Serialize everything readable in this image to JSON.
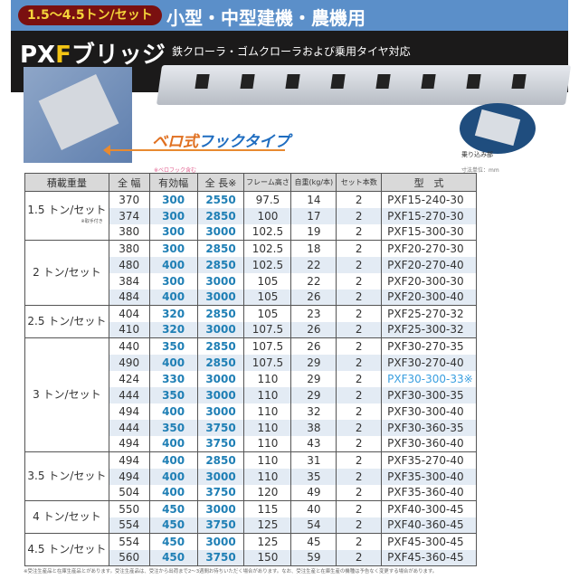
{
  "header": {
    "capacity_badge": "1.5～4.5トン/セット",
    "category": "小型・中型建機・農機用",
    "brand_prefix": "PX",
    "brand_f": "F",
    "brand_suffix": "ブリッジ",
    "subtitle": "鉄クローラ・ゴムクローラおよび乗用タイヤ対応"
  },
  "feature": {
    "hook_a": "ベロ式",
    "hook_b": "フックタイプ",
    "oval_label": "乗り込み部"
  },
  "notes": {
    "length_note": "※ベロフック含む",
    "unit": "寸法単位：mm",
    "footer": "※受注生産品と在庫生産品とがあります。受注生産品は、受注から出荷まで2～3週間お待ちいただく場合があります。なお、受注生産と在庫生産の機種は予告なく変更する場合があります。"
  },
  "colors": {
    "accent_blue": "#1f7fb5",
    "badge": "#7a1010",
    "highlight": "#3a9fe0"
  },
  "table": {
    "headers": [
      "積載重量",
      "全 幅",
      "有効幅",
      "全 長※",
      "フレーム高さ",
      "自重(kg/本)",
      "セット本数",
      "型　式"
    ],
    "groups": [
      {
        "load": "1.5 トン/セット",
        "sub": "※取手付き",
        "rows": [
          [
            "370",
            "300",
            "2550",
            "97.5",
            "14",
            "2",
            "PXF15-240-30"
          ],
          [
            "374",
            "300",
            "2850",
            "100",
            "17",
            "2",
            "PXF15-270-30"
          ],
          [
            "380",
            "300",
            "3000",
            "102.5",
            "19",
            "2",
            "PXF15-300-30"
          ]
        ]
      },
      {
        "load": "2 トン/セット",
        "rows": [
          [
            "380",
            "300",
            "2850",
            "102.5",
            "18",
            "2",
            "PXF20-270-30"
          ],
          [
            "480",
            "400",
            "2850",
            "102.5",
            "22",
            "2",
            "PXF20-270-40"
          ],
          [
            "384",
            "300",
            "3000",
            "105",
            "22",
            "2",
            "PXF20-300-30"
          ],
          [
            "484",
            "400",
            "3000",
            "105",
            "26",
            "2",
            "PXF20-300-40"
          ]
        ]
      },
      {
        "load": "2.5 トン/セット",
        "rows": [
          [
            "404",
            "320",
            "2850",
            "105",
            "23",
            "2",
            "PXF25-270-32"
          ],
          [
            "410",
            "320",
            "3000",
            "107.5",
            "26",
            "2",
            "PXF25-300-32"
          ]
        ]
      },
      {
        "load": "3 トン/セット",
        "rows": [
          [
            "440",
            "350",
            "2850",
            "107.5",
            "26",
            "2",
            "PXF30-270-35"
          ],
          [
            "490",
            "400",
            "2850",
            "107.5",
            "29",
            "2",
            "PXF30-270-40"
          ],
          [
            "424",
            "330",
            "3000",
            "110",
            "29",
            "2",
            "PXF30-300-33※"
          ],
          [
            "444",
            "350",
            "3000",
            "110",
            "29",
            "2",
            "PXF30-300-35"
          ],
          [
            "494",
            "400",
            "3000",
            "110",
            "32",
            "2",
            "PXF30-300-40"
          ],
          [
            "444",
            "350",
            "3750",
            "110",
            "38",
            "2",
            "PXF30-360-35"
          ],
          [
            "494",
            "400",
            "3750",
            "110",
            "43",
            "2",
            "PXF30-360-40"
          ]
        ]
      },
      {
        "load": "3.5 トン/セット",
        "rows": [
          [
            "494",
            "400",
            "2850",
            "110",
            "31",
            "2",
            "PXF35-270-40"
          ],
          [
            "494",
            "400",
            "3000",
            "110",
            "35",
            "2",
            "PXF35-300-40"
          ],
          [
            "504",
            "400",
            "3750",
            "120",
            "49",
            "2",
            "PXF35-360-40"
          ]
        ]
      },
      {
        "load": "4 トン/セット",
        "rows": [
          [
            "550",
            "450",
            "3000",
            "115",
            "40",
            "2",
            "PXF40-300-45"
          ],
          [
            "554",
            "450",
            "3750",
            "125",
            "54",
            "2",
            "PXF40-360-45"
          ]
        ]
      },
      {
        "load": "4.5 トン/セット",
        "rows": [
          [
            "554",
            "450",
            "3000",
            "125",
            "45",
            "2",
            "PXF45-300-45"
          ],
          [
            "560",
            "450",
            "3750",
            "150",
            "59",
            "2",
            "PXF45-360-45"
          ]
        ]
      }
    ]
  }
}
